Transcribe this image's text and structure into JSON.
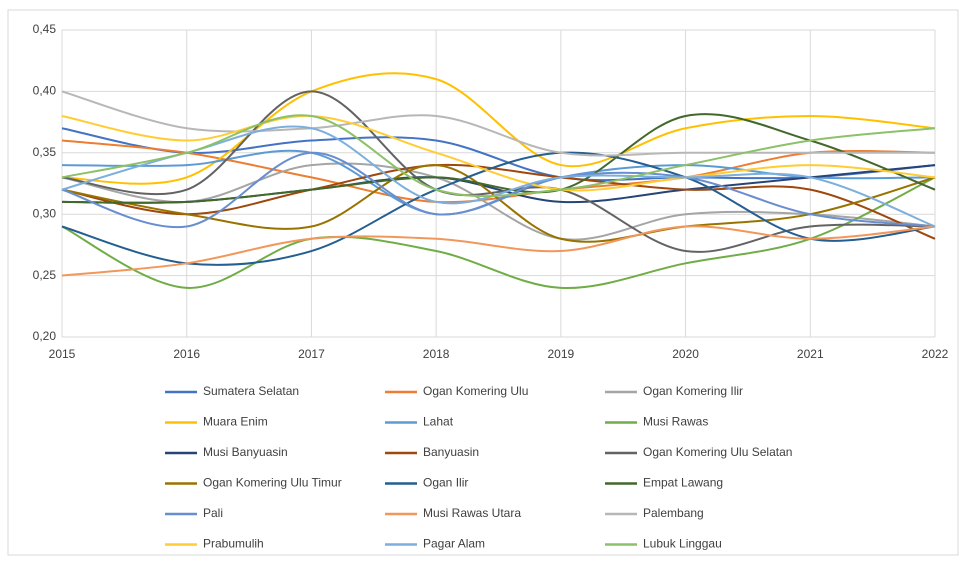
{
  "chart_data": {
    "type": "line",
    "smooth": true,
    "grid": true,
    "legend": "bottom",
    "x": [
      2015,
      2016,
      2017,
      2018,
      2019,
      2020,
      2021,
      2022
    ],
    "xlim": [
      2015,
      2022
    ],
    "xticks": [
      2015,
      2016,
      2017,
      2018,
      2019,
      2020,
      2021,
      2022
    ],
    "ylim": [
      0.2,
      0.45
    ],
    "yticks": [
      {
        "value": 0.2,
        "label": "0,20"
      },
      {
        "value": 0.25,
        "label": "0,25"
      },
      {
        "value": 0.3,
        "label": "0,30"
      },
      {
        "value": 0.35,
        "label": "0,35"
      },
      {
        "value": 0.4,
        "label": "0,40"
      },
      {
        "value": 0.45,
        "label": "0,45"
      }
    ],
    "series": [
      {
        "name": "Sumatera Selatan",
        "color": "#4472c4",
        "values": [
          0.37,
          0.35,
          0.36,
          0.36,
          0.33,
          0.33,
          0.33,
          0.34
        ]
      },
      {
        "name": "Ogan Komering Ulu",
        "color": "#ed7d31",
        "values": [
          0.36,
          0.35,
          0.33,
          0.31,
          0.32,
          0.33,
          0.35,
          0.35
        ]
      },
      {
        "name": "Ogan Komering Ilir",
        "color": "#a5a5a5",
        "values": [
          0.33,
          0.31,
          0.34,
          0.33,
          0.28,
          0.3,
          0.3,
          0.29
        ]
      },
      {
        "name": "Muara Enim",
        "color": "#ffc000",
        "values": [
          0.33,
          0.33,
          0.4,
          0.41,
          0.34,
          0.37,
          0.38,
          0.37
        ]
      },
      {
        "name": "Lahat",
        "color": "#5b9bd5",
        "values": [
          0.34,
          0.34,
          0.35,
          0.3,
          0.33,
          0.34,
          0.33,
          0.33
        ]
      },
      {
        "name": "Musi Rawas",
        "color": "#70ad47",
        "values": [
          0.29,
          0.24,
          0.28,
          0.27,
          0.24,
          0.26,
          0.28,
          0.33
        ]
      },
      {
        "name": "Musi Banyuasin",
        "color": "#264478",
        "values": [
          0.31,
          0.31,
          0.32,
          0.33,
          0.31,
          0.32,
          0.33,
          0.34
        ]
      },
      {
        "name": "Banyuasin",
        "color": "#9e480e",
        "values": [
          0.32,
          0.3,
          0.32,
          0.34,
          0.33,
          0.32,
          0.32,
          0.28
        ]
      },
      {
        "name": "Ogan Komering Ulu Selatan",
        "color": "#636363",
        "values": [
          0.33,
          0.32,
          0.4,
          0.32,
          0.32,
          0.27,
          0.29,
          0.29
        ]
      },
      {
        "name": "Ogan Komering Ulu Timur",
        "color": "#997300",
        "values": [
          0.32,
          0.3,
          0.29,
          0.34,
          0.28,
          0.29,
          0.3,
          0.33
        ]
      },
      {
        "name": "Ogan Ilir",
        "color": "#255e91",
        "values": [
          0.29,
          0.26,
          0.27,
          0.32,
          0.35,
          0.33,
          0.28,
          0.29
        ]
      },
      {
        "name": "Empat Lawang",
        "color": "#43682b",
        "values": [
          0.31,
          0.31,
          0.32,
          0.33,
          0.32,
          0.38,
          0.36,
          0.32
        ]
      },
      {
        "name": "Pali",
        "color": "#698ed0",
        "values": [
          0.32,
          0.29,
          0.35,
          0.3,
          0.33,
          0.33,
          0.3,
          0.29
        ]
      },
      {
        "name": "Musi Rawas Utara",
        "color": "#f1975a",
        "values": [
          0.25,
          0.26,
          0.28,
          0.28,
          0.27,
          0.29,
          0.28,
          0.29
        ]
      },
      {
        "name": "Palembang",
        "color": "#b7b7b7",
        "values": [
          0.4,
          0.37,
          0.37,
          0.38,
          0.35,
          0.35,
          0.35,
          0.35
        ]
      },
      {
        "name": "Prabumulih",
        "color": "#ffcd33",
        "values": [
          0.38,
          0.36,
          0.38,
          0.35,
          0.32,
          0.33,
          0.34,
          0.33
        ]
      },
      {
        "name": "Pagar Alam",
        "color": "#7cafdd",
        "values": [
          0.32,
          0.35,
          0.37,
          0.31,
          0.33,
          0.33,
          0.33,
          0.29
        ]
      },
      {
        "name": "Lubuk Linggau",
        "color": "#8cc168",
        "values": [
          0.33,
          0.35,
          0.38,
          0.32,
          0.32,
          0.34,
          0.36,
          0.37
        ]
      }
    ]
  }
}
